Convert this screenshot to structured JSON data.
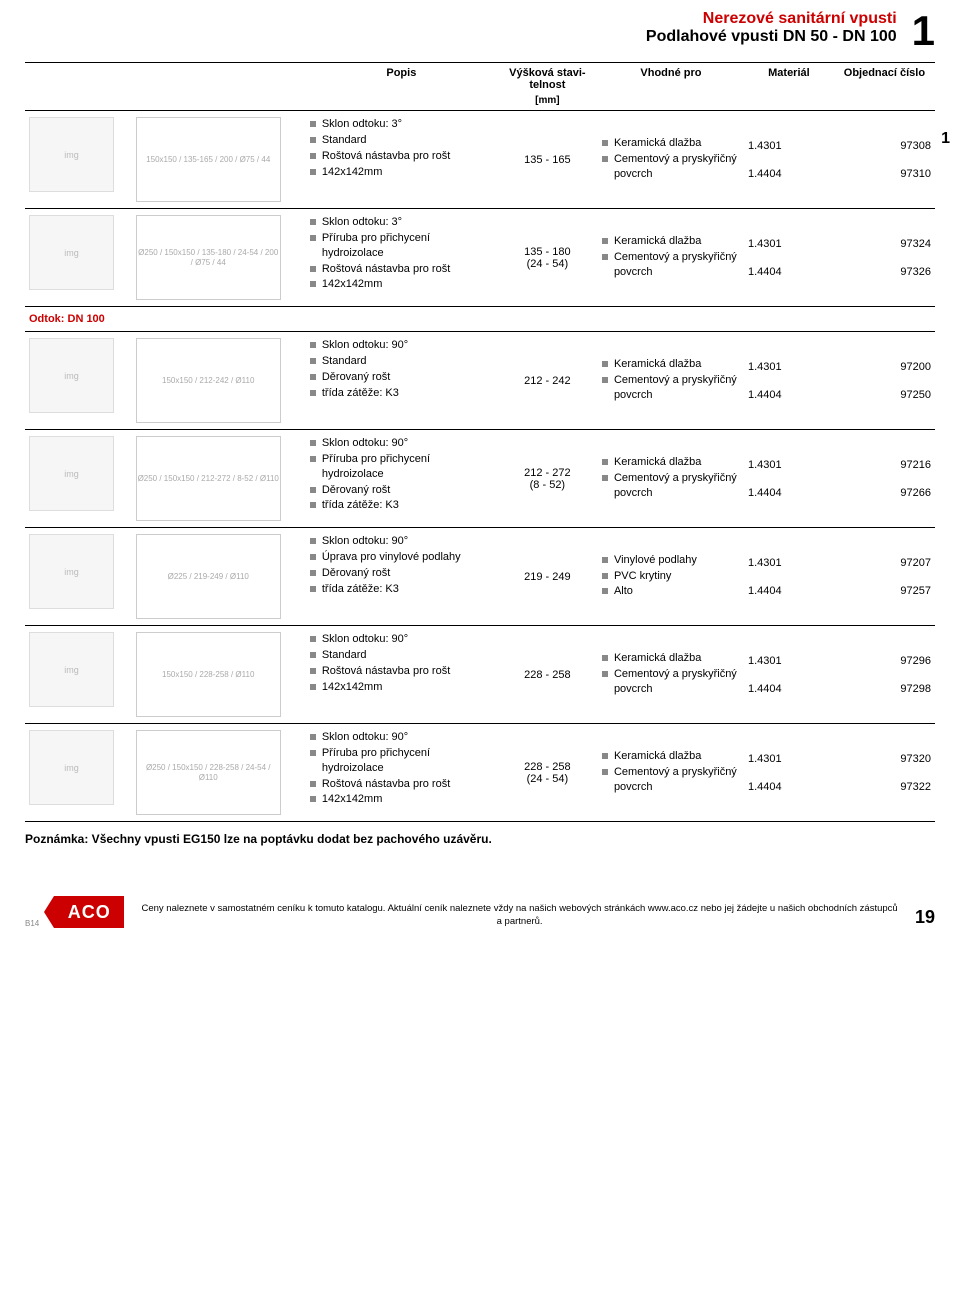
{
  "header": {
    "line1": "Nerezové sanitární vpusti",
    "line2": "Podlahové vpusti DN 50 - DN 100",
    "chapter": "1",
    "side": "1"
  },
  "columns": {
    "desc": "Popis",
    "height": "Výšková stavi-telnost",
    "height_unit": "[mm]",
    "suitable": "Vhodné pro",
    "material": "Materiál",
    "order": "Objednací číslo"
  },
  "section_label": "Odtok: DN 100",
  "rows": [
    {
      "drawing": "150x150 / 135-165 / 200 / Ø75 / 44",
      "desc": [
        "Sklon odtoku: 3°",
        "Standard",
        "Roštová nástavba pro rošt",
        "142x142mm"
      ],
      "height": "135 - 165",
      "suitable": [
        "Keramická dlažba",
        "Cementový a pryskyřičný povcrch"
      ],
      "orders": [
        [
          "1.4301",
          "97308"
        ],
        [
          "1.4404",
          "97310"
        ]
      ]
    },
    {
      "drawing": "Ø250 / 150x150 / 135-180 / 24-54 / 200 / Ø75 / 44",
      "desc": [
        "Sklon odtoku: 3°",
        "Příruba pro přichycení hydroizolace",
        "Roštová nástavba pro rošt",
        "142x142mm"
      ],
      "height": "135 - 180\n(24 - 54)",
      "suitable": [
        "Keramická dlažba",
        "Cementový a pryskyřičný povcrch"
      ],
      "orders": [
        [
          "1.4301",
          "97324"
        ],
        [
          "1.4404",
          "97326"
        ]
      ]
    },
    {
      "drawing": "150x150 / 212-242 / Ø110",
      "desc": [
        "Sklon odtoku: 90°",
        "Standard",
        "Děrovaný rošt",
        "třída zátěže: K3"
      ],
      "height": "212 - 242",
      "suitable": [
        "Keramická dlažba",
        "Cementový a pryskyřičný povcrch"
      ],
      "orders": [
        [
          "1.4301",
          "97200"
        ],
        [
          "1.4404",
          "97250"
        ]
      ]
    },
    {
      "drawing": "Ø250 / 150x150 / 212-272 / 8-52 / Ø110",
      "desc": [
        "Sklon odtoku: 90°",
        "Příruba pro přichycení hydroizolace",
        "Děrovaný rošt",
        "třída zátěže: K3"
      ],
      "height": "212 - 272\n(8 - 52)",
      "suitable": [
        "Keramická dlažba",
        "Cementový a pryskyřičný povcrch"
      ],
      "orders": [
        [
          "1.4301",
          "97216"
        ],
        [
          "1.4404",
          "97266"
        ]
      ]
    },
    {
      "drawing": "Ø225 / 219-249 / Ø110",
      "desc": [
        "Sklon odtoku: 90°",
        "Úprava pro vinylové podlahy",
        "Děrovaný rošt",
        "třída zátěže: K3"
      ],
      "height": "219 - 249",
      "suitable": [
        "Vinylové podlahy",
        "PVC krytiny",
        "Alto"
      ],
      "orders": [
        [
          "1.4301",
          "97207"
        ],
        [
          "1.4404",
          "97257"
        ]
      ]
    },
    {
      "drawing": "150x150 / 228-258 / Ø110",
      "desc": [
        "Sklon odtoku: 90°",
        "Standard",
        "Roštová nástavba pro rošt",
        "142x142mm"
      ],
      "height": "228 - 258",
      "suitable": [
        "Keramická dlažba",
        "Cementový a pryskyřičný povcrch"
      ],
      "orders": [
        [
          "1.4301",
          "97296"
        ],
        [
          "1.4404",
          "97298"
        ]
      ]
    },
    {
      "drawing": "Ø250 / 150x150 / 228-258 / 24-54 / Ø110",
      "desc": [
        "Sklon odtoku: 90°",
        "Příruba pro přichycení hydroizolace",
        "Roštová nástavba pro rošt",
        "142x142mm"
      ],
      "height": "228 - 258\n(24 - 54)",
      "suitable": [
        "Keramická dlažba",
        "Cementový a pryskyřičný povcrch"
      ],
      "orders": [
        [
          "1.4301",
          "97320"
        ],
        [
          "1.4404",
          "97322"
        ]
      ]
    }
  ],
  "note": "Poznámka: Všechny vpusti EG150 lze na poptávku dodat bez pachového uzávěru.",
  "footer": {
    "b14": "B14",
    "logo": "ACO",
    "text": "Ceny naleznete v samostatném ceníku k tomuto katalogu. Aktuální ceník naleznete vždy na našich webových stránkách www.aco.cz nebo jej žádejte u našich obchodních zástupců a partnerů.",
    "page": "19"
  },
  "style": {
    "accent": "#c00",
    "bullet": "#888",
    "font_base": 11
  }
}
